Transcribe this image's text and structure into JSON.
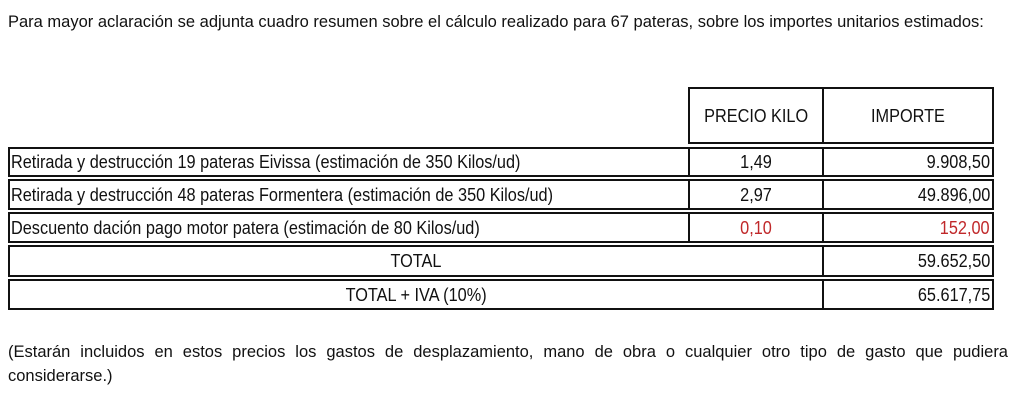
{
  "intro": "Para mayor aclaración se adjunta cuadro resumen sobre el cálculo realizado para 67 pateras, sobre los importes unitarios estimados:",
  "table": {
    "headers": {
      "price": "PRECIO KILO",
      "amount": "IMPORTE"
    },
    "rows": [
      {
        "description": "Retirada y destrucción 19 pateras Eivissa (estimación de 350 Kilos/ud)",
        "price": "1,49",
        "amount": "9.908,50"
      },
      {
        "description": "Retirada y destrucción 48 pateras Formentera (estimación de 350 Kilos/ud)",
        "price": "2,97",
        "amount": "49.896,00"
      },
      {
        "description": "Descuento dación pago motor patera (estimación de 80 Kilos/ud)",
        "price": "0,10",
        "amount": "152,00"
      }
    ],
    "total": {
      "label": "TOTAL",
      "amount": "59.652,50"
    },
    "total_iva": {
      "label": "TOTAL + IVA (10%)",
      "amount": "65.617,75"
    },
    "discount_color": "#c0282a"
  },
  "note": "(Estarán incluidos en estos precios los gastos de desplazamiento, mano de obra o cualquier otro tipo de gasto que pudiera considerarse.)"
}
